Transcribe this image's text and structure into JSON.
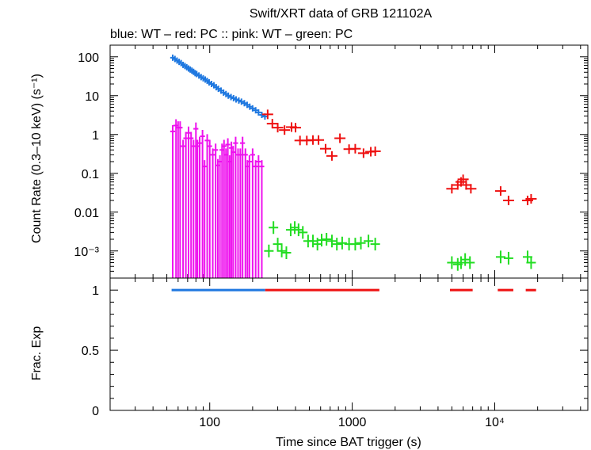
{
  "chart_data": [
    {
      "type": "scatter",
      "title": "Swift/XRT data of GRB 121102A",
      "subtitle": "blue: WT  – red: PC  :: pink: WT  – green: PC",
      "ylabel": "Count Rate (0.3–10 keV) (s⁻¹)",
      "xscale": "log",
      "yscale": "log",
      "xlim": [
        20,
        45000
      ],
      "ylim": [
        0.0002,
        200
      ],
      "yticks": [
        {
          "value": 100,
          "label": "100"
        },
        {
          "value": 10,
          "label": "10"
        },
        {
          "value": 1,
          "label": "1"
        },
        {
          "value": 0.1,
          "label": "0.1"
        },
        {
          "value": 0.01,
          "label": "0.01"
        },
        {
          "value": 0.001,
          "label": "10⁻³"
        }
      ],
      "series": [
        {
          "name": "blue: WT",
          "color": "#1f78e0",
          "points": [
            [
              55,
              95
            ],
            [
              57,
              88
            ],
            [
              59,
              80
            ],
            [
              61,
              74
            ],
            [
              63,
              69
            ],
            [
              65,
              62
            ],
            [
              67,
              58
            ],
            [
              69,
              54
            ],
            [
              71,
              50
            ],
            [
              73,
              47
            ],
            [
              75,
              44
            ],
            [
              77,
              41
            ],
            [
              79,
              38
            ],
            [
              81,
              36
            ],
            [
              84,
              33
            ],
            [
              87,
              30
            ],
            [
              90,
              28
            ],
            [
              93,
              26
            ],
            [
              96,
              24
            ],
            [
              99,
              22
            ],
            [
              103,
              20
            ],
            [
              107,
              18.5
            ],
            [
              111,
              16.5
            ],
            [
              115,
              15
            ],
            [
              120,
              13.5
            ],
            [
              125,
              12
            ],
            [
              130,
              11
            ],
            [
              135,
              10
            ],
            [
              141,
              9.2
            ],
            [
              147,
              8.6
            ],
            [
              153,
              8.0
            ],
            [
              160,
              7.5
            ],
            [
              167,
              7.0
            ],
            [
              175,
              6.4
            ],
            [
              183,
              5.8
            ],
            [
              191,
              5.2
            ],
            [
              200,
              4.7
            ],
            [
              210,
              4.2
            ],
            [
              220,
              3.7
            ],
            [
              232,
              3.2
            ],
            [
              244,
              2.9
            ]
          ]
        },
        {
          "name": "red: PC",
          "color": "#ee1111",
          "points": [
            [
              255,
              3.3
            ],
            [
              275,
              1.9
            ],
            [
              300,
              1.5
            ],
            [
              335,
              1.3
            ],
            [
              375,
              1.55
            ],
            [
              400,
              1.5
            ],
            [
              430,
              0.7
            ],
            [
              480,
              0.7
            ],
            [
              530,
              0.72
            ],
            [
              580,
              0.72
            ],
            [
              650,
              0.43
            ],
            [
              720,
              0.28
            ],
            [
              820,
              0.8
            ],
            [
              950,
              0.42
            ],
            [
              1050,
              0.43
            ],
            [
              1200,
              0.33
            ],
            [
              1350,
              0.36
            ],
            [
              1450,
              0.37
            ],
            [
              5000,
              0.04
            ],
            [
              5500,
              0.05
            ],
            [
              5800,
              0.06
            ],
            [
              6000,
              0.07
            ],
            [
              6300,
              0.05
            ],
            [
              6800,
              0.04
            ],
            [
              11000,
              0.035
            ],
            [
              12500,
              0.02
            ],
            [
              17000,
              0.02
            ],
            [
              18000,
              0.022
            ]
          ]
        },
        {
          "name": "pink: WT",
          "color": "#ee11ee",
          "points": [
            [
              55,
              1.2
            ],
            [
              58,
              1.7
            ],
            [
              60,
              1.5
            ],
            [
              62,
              1.5
            ],
            [
              65,
              0.5
            ],
            [
              68,
              0.8
            ],
            [
              71,
              1.1
            ],
            [
              74,
              0.8
            ],
            [
              77,
              0.5
            ],
            [
              80,
              1.4
            ],
            [
              82,
              0.5
            ],
            [
              85,
              0.6
            ],
            [
              89,
              0.9
            ],
            [
              92,
              0.15
            ],
            [
              96,
              0.7
            ],
            [
              100,
              0.5
            ],
            [
              105,
              0.3
            ],
            [
              110,
              0.4
            ],
            [
              114,
              0.16
            ],
            [
              118,
              0.2
            ],
            [
              122,
              0.4
            ],
            [
              126,
              0.5
            ],
            [
              130,
              0.3
            ],
            [
              134,
              0.55
            ],
            [
              138,
              0.2
            ],
            [
              142,
              0.45
            ],
            [
              146,
              0.35
            ],
            [
              152,
              0.6
            ],
            [
              158,
              0.3
            ],
            [
              164,
              0.3
            ],
            [
              170,
              0.6
            ],
            [
              178,
              0.3
            ],
            [
              184,
              0.15
            ],
            [
              190,
              0.2
            ],
            [
              200,
              0.3
            ],
            [
              210,
              0.15
            ],
            [
              220,
              0.2
            ],
            [
              232,
              0.15
            ]
          ]
        },
        {
          "name": "green: PC",
          "color": "#22dd22",
          "points": [
            [
              260,
              0.001
            ],
            [
              280,
              0.004
            ],
            [
              300,
              0.0015
            ],
            [
              320,
              0.001
            ],
            [
              345,
              0.0009
            ],
            [
              370,
              0.0035
            ],
            [
              395,
              0.004
            ],
            [
              420,
              0.0035
            ],
            [
              450,
              0.003
            ],
            [
              490,
              0.0018
            ],
            [
              530,
              0.0018
            ],
            [
              570,
              0.0015
            ],
            [
              610,
              0.0019
            ],
            [
              660,
              0.002
            ],
            [
              720,
              0.0018
            ],
            [
              780,
              0.0015
            ],
            [
              850,
              0.0016
            ],
            [
              950,
              0.0015
            ],
            [
              1050,
              0.0015
            ],
            [
              1150,
              0.0016
            ],
            [
              1300,
              0.0018
            ],
            [
              1450,
              0.0015
            ],
            [
              5000,
              0.0005
            ],
            [
              5500,
              0.00045
            ],
            [
              5800,
              0.0005
            ],
            [
              6200,
              0.0006
            ],
            [
              6700,
              0.0005
            ],
            [
              11000,
              0.0007
            ],
            [
              12500,
              0.00065
            ],
            [
              17000,
              0.0007
            ],
            [
              18000,
              0.0005
            ]
          ]
        }
      ]
    },
    {
      "type": "line",
      "xlabel": "Time since BAT trigger (s)",
      "ylabel": "Frac. Exp",
      "xscale": "log",
      "xlim": [
        20,
        45000
      ],
      "ylim": [
        0,
        1.1
      ],
      "xticks": [
        {
          "value": 100,
          "label": "100"
        },
        {
          "value": 1000,
          "label": "1000"
        },
        {
          "value": 10000,
          "label": "10⁴"
        }
      ],
      "yticks": [
        {
          "value": 0,
          "label": "0"
        },
        {
          "value": 0.5,
          "label": "0.5"
        },
        {
          "value": 1,
          "label": "1"
        }
      ],
      "segments": [
        {
          "color": "#1f78e0",
          "x": [
            54,
            245
          ],
          "y": 1
        },
        {
          "color": "#ee1111",
          "x": [
            245,
            1550
          ],
          "y": 1
        },
        {
          "color": "#ee1111",
          "x": [
            4850,
            7000
          ],
          "y": 1
        },
        {
          "color": "#ee1111",
          "x": [
            10500,
            13500
          ],
          "y": 1
        },
        {
          "color": "#ee1111",
          "x": [
            16500,
            19500
          ],
          "y": 1
        }
      ]
    }
  ]
}
